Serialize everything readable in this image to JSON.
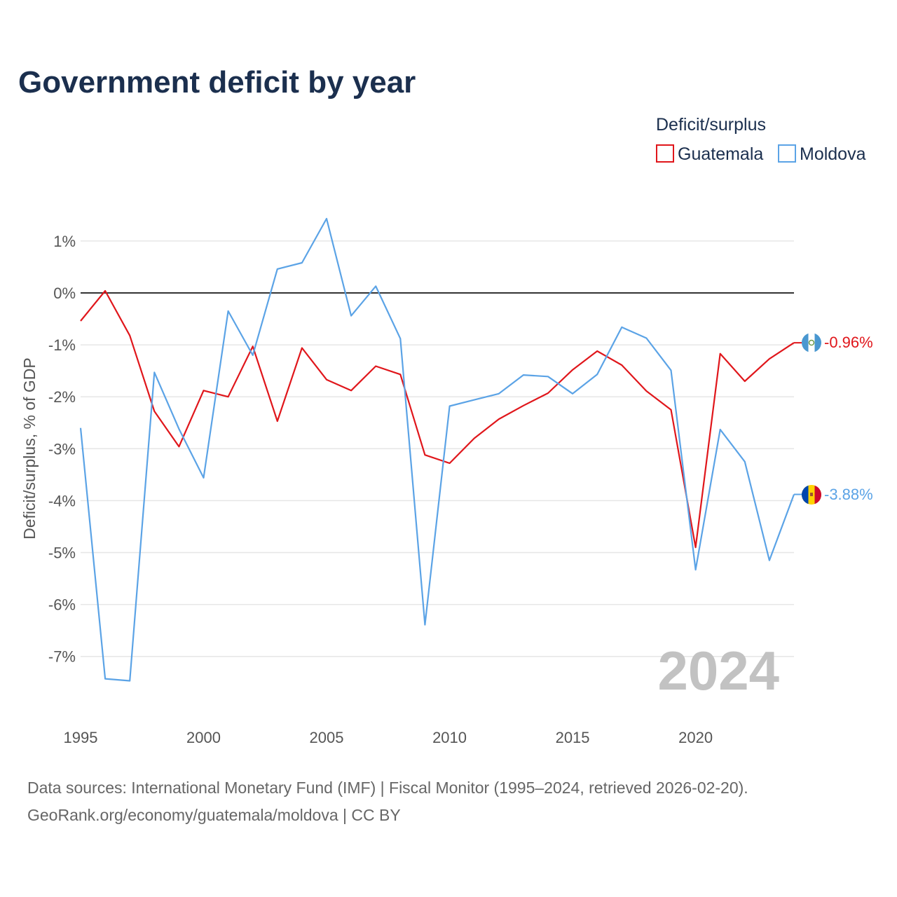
{
  "chart_data": {
    "type": "line",
    "title": "Government deficit by year",
    "ylabel": "Deficit/surplus, % of GDP",
    "xlabel": "",
    "legend_title": "Deficit/surplus",
    "legend_position": "top-right",
    "year_label": "2024",
    "xlim": [
      1995,
      2024
    ],
    "ylim": [
      -8,
      1.5
    ],
    "x_ticks": [
      1995,
      2000,
      2005,
      2010,
      2015,
      2020
    ],
    "x_tick_labels": [
      "1995",
      "2000",
      "2005",
      "2010",
      "2015",
      "2020"
    ],
    "y_ticks": [
      1,
      0,
      -1,
      -2,
      -3,
      -4,
      -5,
      -6,
      -7
    ],
    "y_tick_labels": [
      "1%",
      "0%",
      "-1%",
      "-2%",
      "-3%",
      "-4%",
      "-5%",
      "-6%",
      "-7%"
    ],
    "grid": true,
    "x": [
      1995,
      1996,
      1997,
      1998,
      1999,
      2000,
      2001,
      2002,
      2003,
      2004,
      2005,
      2006,
      2007,
      2008,
      2009,
      2010,
      2011,
      2012,
      2013,
      2014,
      2015,
      2016,
      2017,
      2018,
      2019,
      2020,
      2021,
      2022,
      2023,
      2024
    ],
    "series": [
      {
        "name": "Guatemala",
        "color": "#e0161b",
        "end_label": "-0.96%",
        "values": [
          -0.54,
          0.04,
          -0.82,
          -2.28,
          -2.96,
          -1.88,
          -2.0,
          -1.03,
          -2.47,
          -1.06,
          -1.67,
          -1.88,
          -1.41,
          -1.57,
          -3.12,
          -3.28,
          -2.8,
          -2.43,
          -2.17,
          -1.93,
          -1.48,
          -1.12,
          -1.39,
          -1.89,
          -2.25,
          -4.9,
          -1.17,
          -1.7,
          -1.27,
          -0.96
        ]
      },
      {
        "name": "Moldova",
        "color": "#5ba3e6",
        "end_label": "-3.88%",
        "values": [
          -2.6,
          -7.43,
          -7.47,
          -1.53,
          -2.62,
          -3.56,
          -0.35,
          -1.2,
          0.46,
          0.58,
          1.43,
          -0.44,
          0.13,
          -0.88,
          -6.39,
          -2.18,
          -2.06,
          -1.94,
          -1.58,
          -1.61,
          -1.94,
          -1.57,
          -0.66,
          -0.87,
          -1.49,
          -5.33,
          -2.63,
          -3.25,
          -5.15,
          -3.88
        ]
      }
    ]
  },
  "footer": {
    "source_line": "Data sources: International Monetary Fund (IMF) | Fiscal Monitor (1995–2024, retrieved 2026-02-20).",
    "credit_line": "GeoRank.org/economy/guatemala/moldova | CC BY"
  }
}
